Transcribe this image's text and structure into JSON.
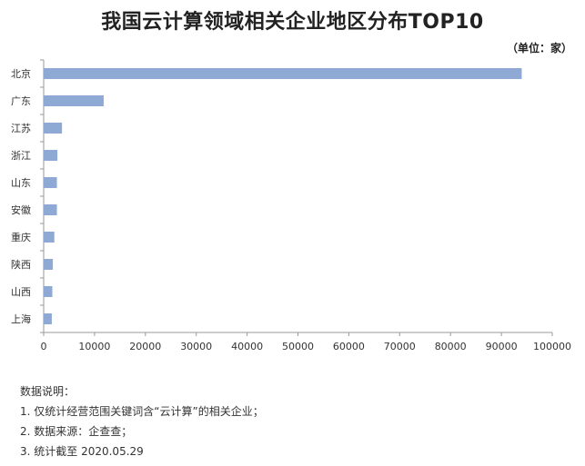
{
  "chart_data": {
    "type": "bar",
    "orientation": "horizontal",
    "title": "我国云计算领域相关企业地区分布TOP10",
    "unit_label": "（单位：家）",
    "categories": [
      "北京",
      "广东",
      "江苏",
      "浙江",
      "山东",
      "安徽",
      "重庆",
      "陕西",
      "山西",
      "上海"
    ],
    "values": [
      94000,
      11800,
      3600,
      2700,
      2600,
      2600,
      2100,
      1800,
      1700,
      1600
    ],
    "xlim": [
      0,
      100000
    ],
    "xticks": [
      "0",
      "10000",
      "20000",
      "30000",
      "40000",
      "50000",
      "60000",
      "70000",
      "80000",
      "90000",
      "100000"
    ],
    "bar_color": "#8eaad4",
    "grid": false
  },
  "notes": {
    "heading": "数据说明：",
    "items": [
      "1. 仅统计经营范围关键词含“云计算”的相关企业；",
      "2. 数据来源：企查查；",
      "3. 统计截至 2020.05.29"
    ]
  }
}
